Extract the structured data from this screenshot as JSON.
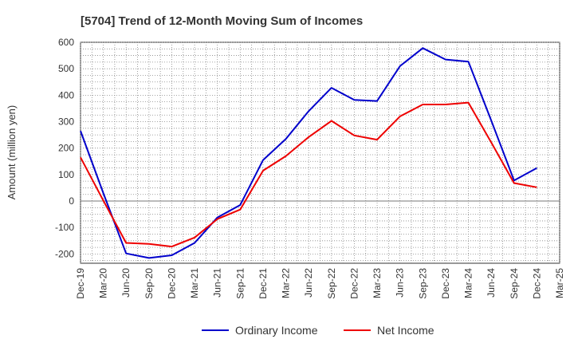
{
  "chart_data": {
    "type": "line",
    "title": "[5704]  Trend of 12-Month Moving Sum of Incomes",
    "xlabel": "",
    "ylabel": "Amount (million yen)",
    "ylim": [
      -235,
      600
    ],
    "yticks": [
      600,
      500,
      400,
      300,
      200,
      100,
      0,
      -100,
      -200
    ],
    "grid": true,
    "legend_position": "bottom",
    "categories": [
      "Dec-19",
      "Mar-20",
      "Jun-20",
      "Sep-20",
      "Dec-20",
      "Mar-21",
      "Jun-21",
      "Sep-21",
      "Dec-21",
      "Mar-22",
      "Jun-22",
      "Sep-22",
      "Dec-22",
      "Mar-23",
      "Jun-23",
      "Sep-23",
      "Dec-23",
      "Mar-24",
      "Jun-24",
      "Sep-24",
      "Dec-24",
      "Mar-25"
    ],
    "series": [
      {
        "name": "Ordinary Income",
        "color": "#0000cc",
        "values": [
          265,
          30,
          -198,
          -215,
          -205,
          -158,
          -62,
          -15,
          155,
          235,
          340,
          428,
          382,
          378,
          510,
          578,
          535,
          527,
          305,
          78,
          125,
          null
        ]
      },
      {
        "name": "Net Income",
        "color": "#ee0000",
        "values": [
          165,
          2,
          -158,
          -162,
          -172,
          -138,
          -68,
          -32,
          115,
          170,
          242,
          303,
          248,
          232,
          320,
          365,
          365,
          372,
          222,
          68,
          52,
          null
        ]
      }
    ]
  }
}
